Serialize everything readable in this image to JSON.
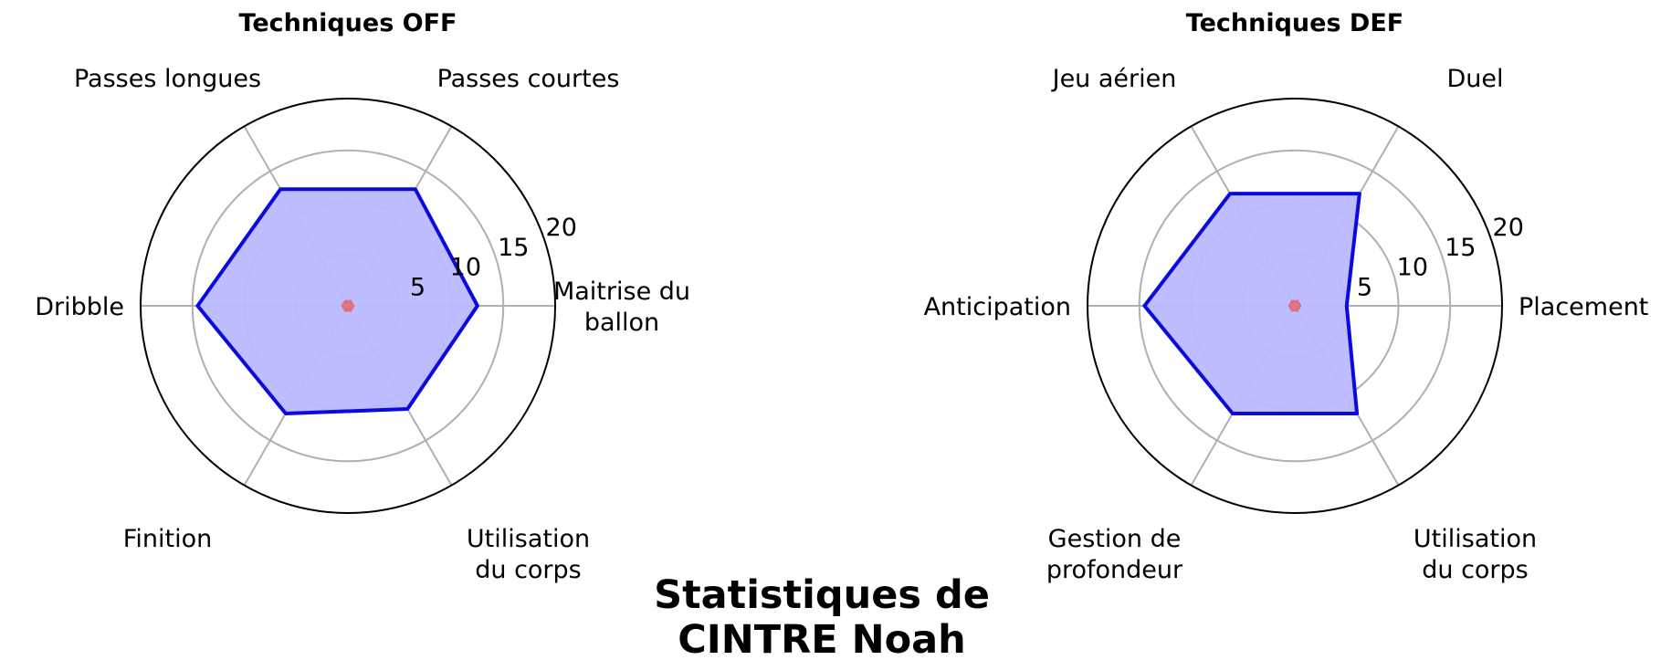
{
  "figure": {
    "suptitle_line1": "Statistiques de",
    "suptitle_line2": "CINTRE Noah"
  },
  "colors": {
    "player_line": "#0a0ae0",
    "player_fill": "#b9b9ff",
    "baseline_fill": "#e07080",
    "grid": "#b0b0b0",
    "outer_ring": "#000000"
  },
  "chart_data": [
    {
      "type": "radar",
      "title": "Techniques OFF",
      "rlim": [
        0,
        20
      ],
      "rticks": [
        5,
        10,
        15,
        20
      ],
      "rtick_labels": [
        "5",
        "10",
        "15",
        "20"
      ],
      "grid": true,
      "axes": [
        {
          "line1": "Maitrise du",
          "line2": "ballon"
        },
        {
          "line1": "Passes courtes",
          "line2": ""
        },
        {
          "line1": "Passes longues",
          "line2": ""
        },
        {
          "line1": "Dribble",
          "line2": ""
        },
        {
          "line1": "Finition",
          "line2": ""
        },
        {
          "line1": "Utilisation",
          "line2": "du corps"
        }
      ],
      "series": [
        {
          "values": [
            12.5,
            13.0,
            13.0,
            14.5,
            12.0,
            11.5
          ]
        },
        {
          "values": [
            0.5,
            0.5,
            0.5,
            0.5,
            0.5,
            0.5
          ]
        }
      ]
    },
    {
      "type": "radar",
      "title": "Techniques DEF",
      "rlim": [
        0,
        20
      ],
      "rticks": [
        5,
        10,
        15,
        20
      ],
      "rtick_labels": [
        "5",
        "10",
        "15",
        "20"
      ],
      "grid": true,
      "axes": [
        {
          "line1": "Placement",
          "line2": ""
        },
        {
          "line1": "Duel",
          "line2": ""
        },
        {
          "line1": "Jeu aérien",
          "line2": ""
        },
        {
          "line1": "Anticipation",
          "line2": ""
        },
        {
          "line1": "Gestion de",
          "line2": "profondeur"
        },
        {
          "line1": "Utilisation",
          "line2": "du corps"
        }
      ],
      "series": [
        {
          "values": [
            5.0,
            12.5,
            12.5,
            14.5,
            12.0,
            12.0
          ]
        },
        {
          "values": [
            0.5,
            0.5,
            0.5,
            0.5,
            0.5,
            0.5
          ]
        }
      ]
    }
  ]
}
